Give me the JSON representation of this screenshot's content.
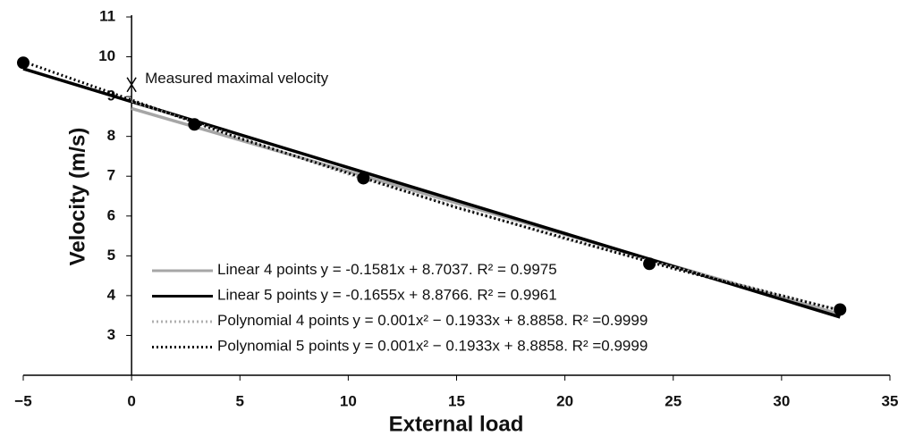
{
  "chart_data": {
    "type": "scatter",
    "xlabel": "External load",
    "ylabel": "Velocity (m/s)",
    "xlim": [
      -5,
      35
    ],
    "xticks": [
      {
        "value": -5,
        "label": "−5"
      },
      0,
      5,
      10,
      15,
      20,
      25,
      30,
      35
    ],
    "ylim": [
      2,
      11
    ],
    "yticks": [
      3,
      4,
      5,
      6,
      7,
      8,
      9,
      10,
      11
    ],
    "points": {
      "color": "#000000",
      "x": [
        -5.0,
        2.9,
        10.7,
        23.9,
        32.7
      ],
      "values": [
        9.85,
        8.3,
        6.95,
        4.8,
        3.65
      ]
    },
    "series": [
      {
        "name": "Linear 4 points",
        "equation": "y = -0.1581x + 8.7037.  R² = 0.9975",
        "color": "#a6a6a6",
        "style": "solid",
        "x": [
          0,
          32.7
        ],
        "values": [
          8.7,
          3.53
        ]
      },
      {
        "name": "Linear 5 points",
        "equation": "y = -0.1655x + 8.8766.  R² = 0.9961",
        "color": "#000000",
        "style": "solid",
        "x": [
          -5,
          32.7
        ],
        "values": [
          9.7,
          3.46
        ]
      },
      {
        "name": "Polynomial 4 points",
        "equation": "y = 0.001x² − 0.1933x + 8.8858.  R² =0.9999",
        "color": "#b0b0b0",
        "style": "dotted",
        "x": [
          0,
          10,
          20,
          32.7
        ],
        "values": [
          8.89,
          7.05,
          5.42,
          3.63
        ]
      },
      {
        "name": "Polynomial 5 points",
        "equation": "y = 0.001x² − 0.1933x + 8.8858.  R² =0.9999",
        "color": "#000000",
        "style": "dotted",
        "x": [
          -5,
          5,
          15,
          25,
          32.7
        ],
        "values": [
          9.88,
          7.95,
          6.21,
          4.68,
          3.63
        ]
      }
    ],
    "annotation": {
      "text": "Measured maximal velocity",
      "x": 0,
      "y": 9.3
    }
  }
}
